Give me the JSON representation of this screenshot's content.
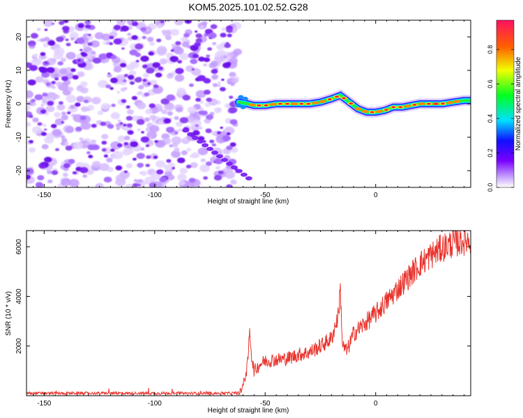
{
  "title": "KOM5.2025.101.02.52.G28",
  "colors": {
    "snr_line": "#e8332c",
    "noise": "#8a3ff0",
    "axis": "#000000"
  },
  "chart_data": [
    {
      "type": "heatmap",
      "xlabel": "Height of straight line (km)",
      "ylabel": "Frequency (Hz)",
      "xlim": [
        -158,
        43
      ],
      "ylim": [
        -25,
        25
      ],
      "xticks": [
        -150,
        -100,
        -50,
        0
      ],
      "yticks": [
        -20,
        -10,
        0,
        10,
        20
      ],
      "colorbar": {
        "label": "Normalized spectral amplitude",
        "range": [
          0,
          0.97
        ],
        "ticks": [
          "0.0",
          "0.2",
          "0.4",
          "0.6",
          "0.8"
        ],
        "colormap": "rainbow"
      },
      "signal_ridge": {
        "x": [
          -62,
          -58,
          -55,
          -50,
          -45,
          -40,
          -35,
          -30,
          -25,
          -20,
          -16,
          -12,
          -8,
          -4,
          0,
          4,
          8,
          12,
          16,
          20,
          25,
          30,
          35,
          40,
          43
        ],
        "y": [
          0.5,
          0,
          -0.5,
          -0.5,
          0,
          0,
          0,
          0,
          0.5,
          1.5,
          2.5,
          0.5,
          -1.5,
          -2.5,
          -2.5,
          -2,
          -1,
          -1,
          -0.5,
          0,
          0,
          0,
          0.5,
          1,
          1
        ]
      },
      "noise_region_x": [
        -158,
        -62
      ]
    },
    {
      "type": "line",
      "xlabel": "Height of straight line (km)",
      "ylabel": "SNR (10 * v/v)",
      "xlim": [
        -158,
        43
      ],
      "ylim": [
        0,
        6650
      ],
      "xticks": [
        -150,
        -100,
        -50,
        0
      ],
      "yticks": [
        2000,
        4000,
        6000
      ],
      "series": [
        {
          "x": [
            -158,
            -140,
            -120,
            -100,
            -80,
            -65,
            -62,
            -60,
            -58,
            -57,
            -56,
            -55,
            -52,
            -50,
            -45,
            -40,
            -35,
            -30,
            -25,
            -20,
            -17,
            -16,
            -15,
            -13,
            -10,
            -5,
            0,
            5,
            10,
            15,
            20,
            25,
            30,
            35,
            40,
            43
          ],
          "y": [
            100,
            100,
            100,
            100,
            100,
            100,
            120,
            400,
            1200,
            2600,
            1500,
            1000,
            1300,
            1400,
            1450,
            1500,
            1650,
            1750,
            2000,
            2300,
            3200,
            4300,
            2000,
            1800,
            2500,
            2900,
            3300,
            3800,
            4300,
            4800,
            5300,
            5650,
            5950,
            6150,
            6250,
            6300
          ]
        }
      ]
    }
  ]
}
